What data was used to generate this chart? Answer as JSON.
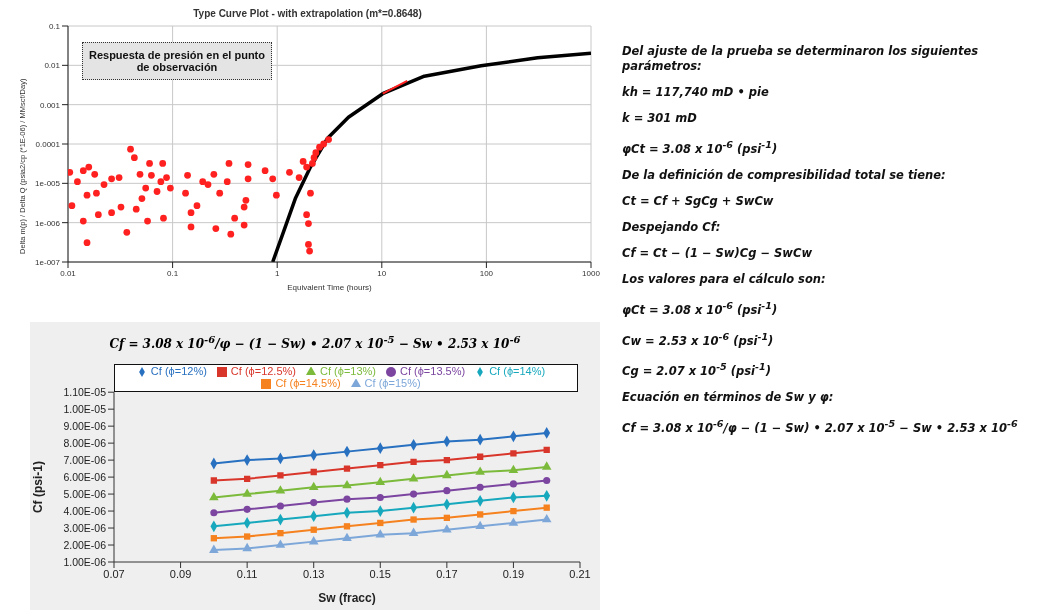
{
  "chart_data": [
    {
      "type": "scatter",
      "title": "Type Curve Plot - with extrapolation (m*=0.8648)",
      "xlabel": "Equivalent Time (hours)",
      "ylabel": "Delta m(p) / Delta Q (psia2/cp (*1E-06) / MMscf/Day)",
      "log": "xy",
      "grid": true,
      "xlim": [
        0.01,
        1000
      ],
      "xticks": [
        0.01,
        0.1,
        1,
        10,
        100,
        1000
      ],
      "ylim": [
        1e-07,
        0.1
      ],
      "yticks": [
        {
          "value": 1e-07,
          "label": "1e-007"
        },
        {
          "value": 1e-06,
          "label": "1e-006"
        },
        {
          "value": 1e-05,
          "label": "1e-005"
        },
        0.0001,
        0.001,
        0.01,
        0.1
      ],
      "annotations": [
        "Respuesta de presión en el punto de observación"
      ],
      "series": [
        {
          "type": "scatter",
          "color": "#ff2020",
          "marker": "circle",
          "x": [
            0.0104,
            0.0109,
            0.0123,
            0.014,
            0.014,
            0.0152,
            0.0158,
            0.0152,
            0.018,
            0.0187,
            0.0195,
            0.0221,
            0.0261,
            0.0261,
            0.0308,
            0.0321,
            0.0365,
            0.0396,
            0.0431,
            0.0449,
            0.0488,
            0.0509,
            0.0553,
            0.0602,
            0.0576,
            0.0627,
            0.071,
            0.0772,
            0.0804,
            0.0818,
            0.0875,
            0.0952,
            0.133,
            0.139,
            0.15,
            0.15,
            0.171,
            0.194,
            0.218,
            0.248,
            0.259,
            0.282,
            0.333,
            0.346,
            0.36,
            0.392,
            0.483,
            0.502,
            0.527,
            0.527,
            0.483,
            0.766,
            0.906,
            0.982,
            1.31,
            1.62,
            1.91,
            1.99,
            1.99,
            2.04,
            2.08,
            1.91,
            2.17,
            2.25,
            2.34,
            2.54,
            2.78,
            3.1,
            1.77
          ],
          "values": [
            1.9e-05,
            2.7e-06,
            1.1e-05,
            2.1e-05,
            1.1e-06,
            3.1e-07,
            2.6e-05,
            5e-06,
            1.7e-05,
            5.6e-06,
            1.6e-06,
            9.3e-06,
            1.3e-05,
            1.8e-06,
            1.4e-05,
            2.5e-06,
            5.7e-07,
            7.4e-05,
            4.5e-05,
            2.2e-06,
            1.7e-05,
            4.1e-06,
            7.6e-06,
            3.2e-05,
            1.1e-06,
            1.6e-05,
            6.2e-06,
            1.1e-05,
            3.2e-05,
            1.3e-06,
            1.4e-05,
            7.6e-06,
            5.6e-06,
            1.6e-05,
            7.8e-07,
            1.8e-06,
            2.7e-06,
            1.1e-05,
            9.3e-06,
            1.7e-05,
            7.1e-07,
            5.6e-06,
            1.1e-05,
            3.2e-05,
            5.1e-07,
            1.3e-06,
            2.5e-06,
            3.7e-06,
            3e-05,
            1.3e-05,
            8.7e-07,
            2.1e-05,
            1.3e-05,
            5e-06,
            1.9e-05,
            1.4e-05,
            1.6e-06,
            9.5e-07,
            2.8e-07,
            1.9e-07,
            5.6e-06,
            2.6e-05,
            3.2e-05,
            4.5e-05,
            6e-05,
            8.3e-05,
            0.0001,
            0.00013,
            3.6e-05
          ]
        },
        {
          "type": "line",
          "color": "#000000",
          "x": [
            0.906,
            1.16,
            1.49,
            2.08,
            3.03,
            4.8,
            10.2,
            25.5,
            89,
            309,
            1000
          ],
          "values": [
            1e-07,
            6.3e-07,
            4.1e-06,
            2.6e-05,
            0.00014,
            0.00048,
            0.0019,
            0.0053,
            0.0098,
            0.0155,
            0.0203
          ]
        },
        {
          "type": "line",
          "color": "#ff2020",
          "x": [
            10.2,
            17.5
          ],
          "values": [
            0.0019,
            0.004
          ]
        }
      ]
    },
    {
      "type": "line",
      "title": "Cf = 3.08 x 10$^{-6}$/φ − (1 − Sw) • 2.07 x 10$^{-5}$ − Sw • 2.53 x 10$^{-6}$",
      "xlabel": "Sw (fracc)",
      "ylabel": "Cf (psi-1)",
      "legend": "top",
      "x": [
        0.1,
        0.11,
        0.12,
        0.13,
        0.14,
        0.15,
        0.16,
        0.17,
        0.18,
        0.19,
        0.2
      ],
      "xlim": [
        0.07,
        0.21
      ],
      "xticks": [
        0.07,
        0.09,
        0.11,
        0.13,
        0.15,
        0.17,
        0.19,
        0.21
      ],
      "ylim": [
        1e-06,
        1.1e-05
      ],
      "yticks": [
        {
          "value": 1e-06,
          "label": "1.00E-06"
        },
        {
          "value": 2e-06,
          "label": "2.00E-06"
        },
        {
          "value": 3e-06,
          "label": "3.00E-06"
        },
        {
          "value": 4e-06,
          "label": "4.00E-06"
        },
        {
          "value": 5e-06,
          "label": "5.00E-06"
        },
        {
          "value": 6e-06,
          "label": "6.00E-06"
        },
        {
          "value": 7e-06,
          "label": "7.00E-06"
        },
        {
          "value": 8e-06,
          "label": "8.00E-06"
        },
        {
          "value": 9e-06,
          "label": "9.00E-06"
        },
        {
          "value": 1e-05,
          "label": "1.00E-05"
        },
        {
          "value": 1.1e-05,
          "label": "1.10E-05"
        }
      ],
      "series": [
        {
          "name": "Cf (ϕ=12%)",
          "color": "#2870c0",
          "marker": "diamond",
          "values": [
            6.8e-06,
            7e-06,
            7.1e-06,
            7.3e-06,
            7.5e-06,
            7.7e-06,
            7.9e-06,
            8.1e-06,
            8.2e-06,
            8.4e-06,
            8.6e-06
          ]
        },
        {
          "name": "Cf (ϕ=12.5%)",
          "color": "#d9362b",
          "marker": "square",
          "values": [
            5.8e-06,
            5.9e-06,
            6.1e-06,
            6.3e-06,
            6.5e-06,
            6.7e-06,
            6.9e-06,
            7e-06,
            7.2e-06,
            7.4e-06,
            7.6e-06
          ]
        },
        {
          "name": "Cf (ϕ=13%)",
          "color": "#7cba3c",
          "marker": "triangle",
          "values": [
            4.8e-06,
            5e-06,
            5.2e-06,
            5.4e-06,
            5.5e-06,
            5.7e-06,
            5.9e-06,
            6.1e-06,
            6.3e-06,
            6.4e-06,
            6.6e-06
          ]
        },
        {
          "name": "Cf (ϕ=13.5%)",
          "color": "#7b45a0",
          "marker": "circle",
          "values": [
            3.9e-06,
            4.1e-06,
            4.3e-06,
            4.5e-06,
            4.7e-06,
            4.8e-06,
            5e-06,
            5.2e-06,
            5.4e-06,
            5.6e-06,
            5.8e-06
          ]
        },
        {
          "name": "Cf (ϕ=14%)",
          "color": "#17a8bd",
          "marker": "diamond",
          "values": [
            3.1e-06,
            3.3e-06,
            3.5e-06,
            3.7e-06,
            3.9e-06,
            4e-06,
            4.2e-06,
            4.4e-06,
            4.6e-06,
            4.8e-06,
            4.9e-06
          ]
        },
        {
          "name": "Cf (ϕ=14.5%)",
          "color": "#f5821f",
          "marker": "square",
          "values": [
            2.4e-06,
            2.5e-06,
            2.7e-06,
            2.9e-06,
            3.1e-06,
            3.3e-06,
            3.5e-06,
            3.6e-06,
            3.8e-06,
            4e-06,
            4.2e-06
          ]
        },
        {
          "name": "Cf (ϕ=15%)",
          "color": "#7da7d9",
          "marker": "triangle",
          "values": [
            1.7e-06,
            1.8e-06,
            2e-06,
            2.2e-06,
            2.4e-06,
            2.6e-06,
            2.7e-06,
            2.9e-06,
            3.1e-06,
            3.3e-06,
            3.5e-06
          ]
        }
      ]
    },
    {
      "type": "other",
      "annotations": [
        "Del ajuste de la prueba  se determinaron los siguientes parámetros:",
        "kh = 117,740 mD • pie",
        "k = 301 mD",
        "φCt = 3.08 x 10$^{-6}$ (psi$^{-1}$)",
        "De la definición de compresibilidad total se tiene:",
        "Ct = Cf + SgCg + SwCw",
        "Despejando Cf:",
        "Cf = Ct − (1 − Sw)Cg − SwCw",
        "Los valores para el cálculo son:",
        "φCt = 3.08 x 10$^{-6}$ (psi$^{-1}$)",
        "Cw = 2.53 x 10$^{-6}$ (psi$^{-1}$)",
        "Cg = 2.07 x 10$^{-5}$ (psi$^{-1}$)",
        "Ecuación en términos de Sw y φ:",
        "Cf = 3.08 x 10$^{-6}$/φ − (1 − Sw) • 2.07 x 10$^{-5}$ − Sw • 2.53 x 10$^{-6}$"
      ]
    }
  ]
}
